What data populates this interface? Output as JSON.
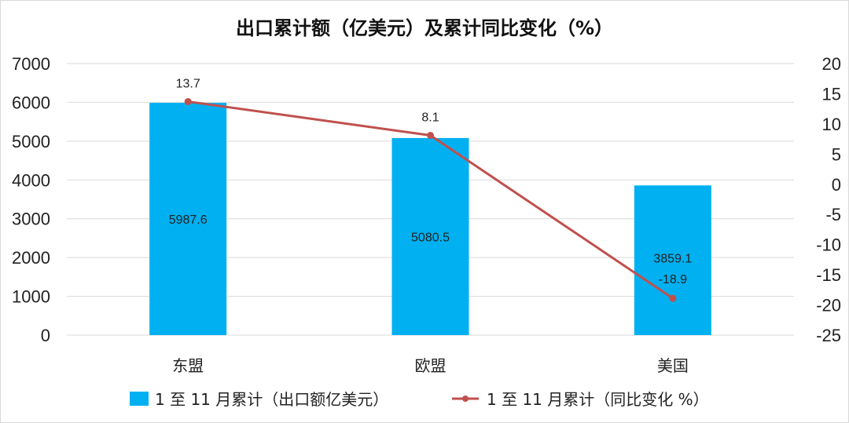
{
  "chart_data": {
    "type": "bar",
    "title": "出口累计额（亿美元）及累计同比变化（%）",
    "categories": [
      "东盟",
      "欧盟",
      "美国"
    ],
    "series": [
      {
        "name": "1 至 11 月累计（出口额亿美元）",
        "kind": "bar",
        "axis": "left",
        "values": [
          5987.6,
          5080.5,
          3859.1
        ],
        "labels": [
          "5987.6",
          "5080.5",
          "3859.1"
        ]
      },
      {
        "name": "1 至 11 月累计（同比变化 %）",
        "kind": "line",
        "axis": "right",
        "values": [
          13.7,
          8.1,
          -18.9
        ],
        "labels": [
          "13.7",
          "8.1",
          "-18.9"
        ]
      }
    ],
    "ylim": [
      0,
      7000
    ],
    "y_ticks": [
      "0",
      "1000",
      "2000",
      "3000",
      "4000",
      "5000",
      "6000",
      "7000"
    ],
    "y2lim": [
      -25,
      20
    ],
    "y2_ticks": [
      "-25",
      "-20",
      "-15",
      "-10",
      "-5",
      "0",
      "5",
      "10",
      "15",
      "20"
    ],
    "grid": true,
    "legend_position": "bottom",
    "colors": {
      "bar": "#00b0f0",
      "line": "#c0504d",
      "grid": "#d9d9d9"
    }
  }
}
